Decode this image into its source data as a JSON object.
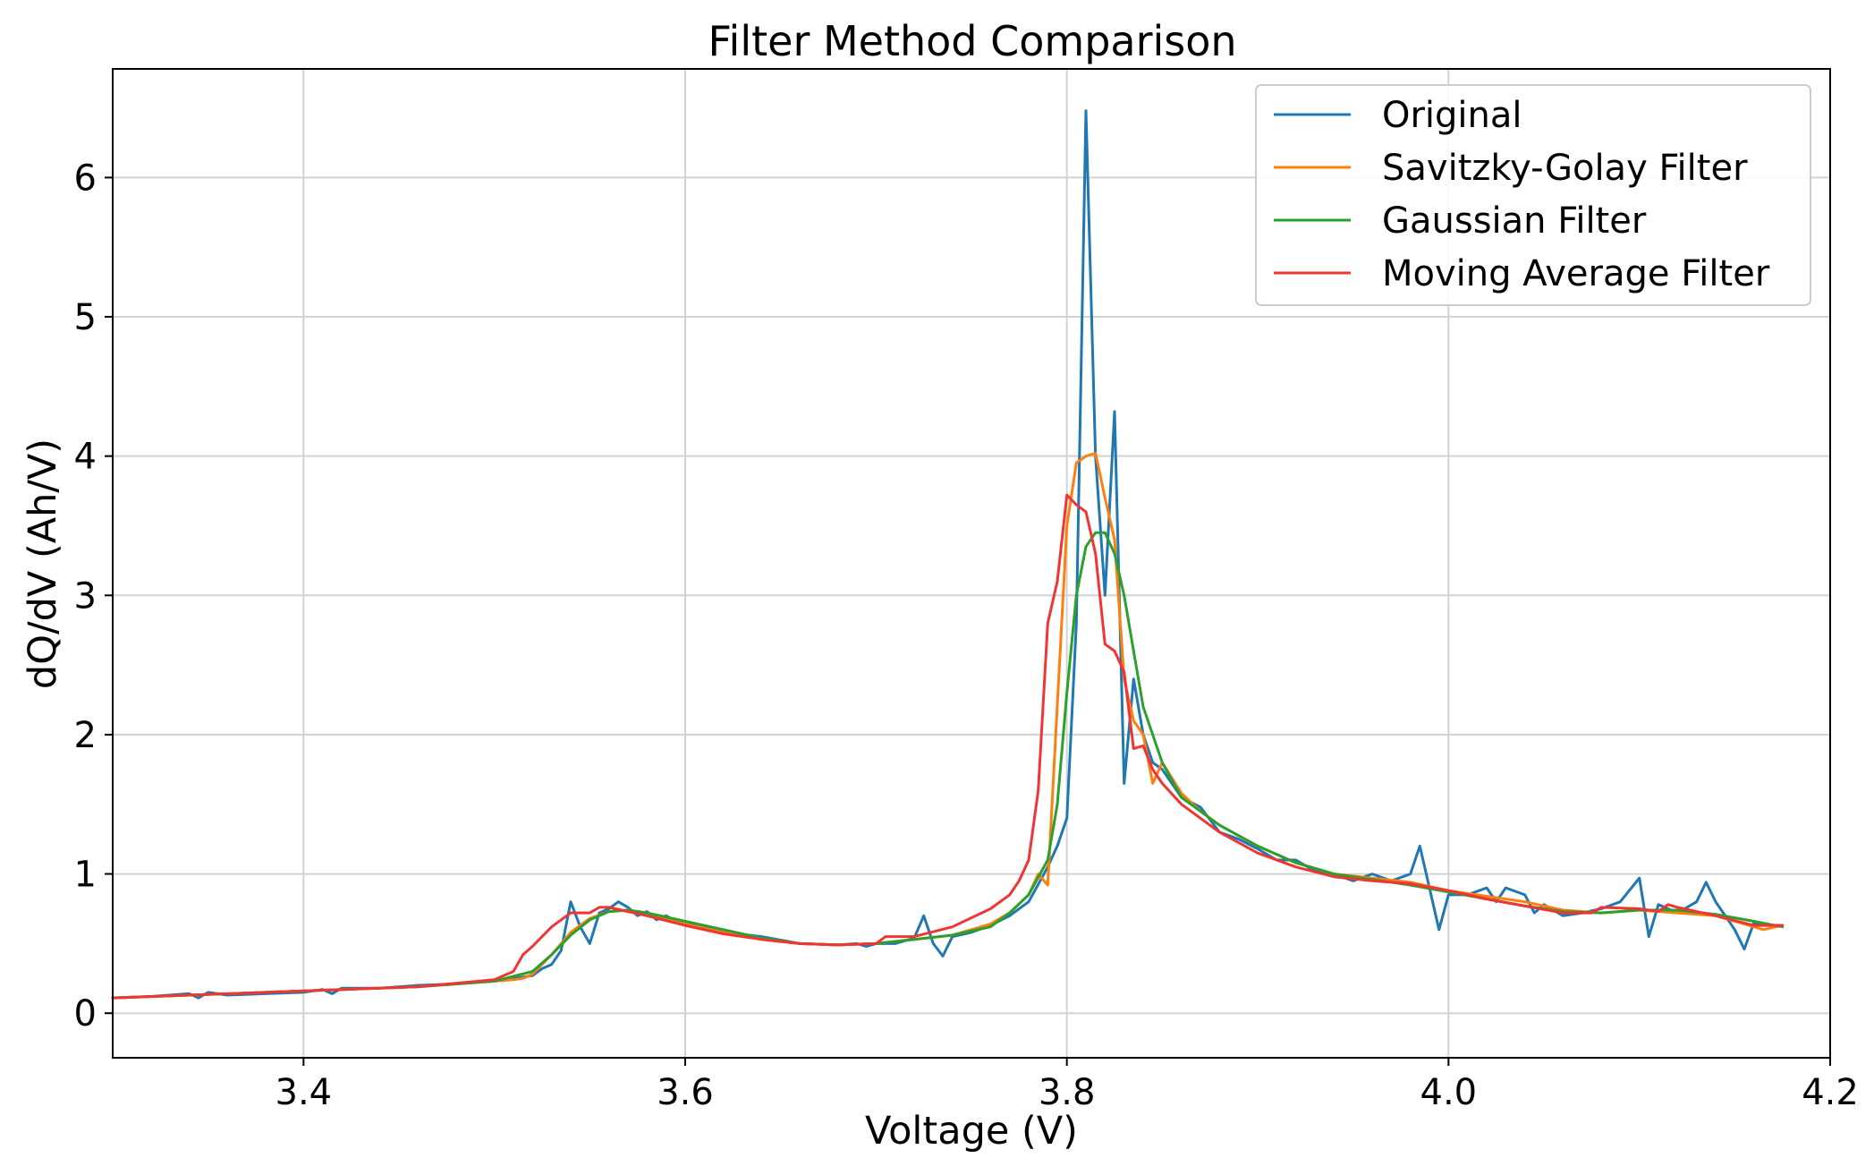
{
  "chart_data": {
    "type": "line",
    "title": "Filter Method Comparison",
    "xlabel": "Voltage (V)",
    "ylabel": "dQ/dV (Ah/V)",
    "xlim": [
      3.3,
      4.2
    ],
    "ylim": [
      -0.32,
      6.78
    ],
    "xticks": [
      3.4,
      3.6,
      3.8,
      4.0,
      4.2
    ],
    "xtick_labels": [
      "3.4",
      "3.6",
      "3.8",
      "4.0",
      "4.2"
    ],
    "yticks": [
      0,
      1,
      2,
      3,
      4,
      5,
      6
    ],
    "ytick_labels": [
      "0",
      "1",
      "2",
      "3",
      "4",
      "5",
      "6"
    ],
    "grid": true,
    "legend_position": "top-right",
    "series": [
      {
        "name": "Original",
        "color": "#1f77b4",
        "x": [
          3.3,
          3.32,
          3.34,
          3.345,
          3.35,
          3.36,
          3.38,
          3.4,
          3.41,
          3.415,
          3.42,
          3.44,
          3.46,
          3.48,
          3.5,
          3.51,
          3.52,
          3.525,
          3.53,
          3.535,
          3.54,
          3.545,
          3.55,
          3.555,
          3.56,
          3.565,
          3.57,
          3.575,
          3.58,
          3.585,
          3.59,
          3.595,
          3.6,
          3.61,
          3.62,
          3.64,
          3.66,
          3.68,
          3.69,
          3.695,
          3.7,
          3.71,
          3.72,
          3.725,
          3.73,
          3.735,
          3.74,
          3.75,
          3.76,
          3.77,
          3.78,
          3.79,
          3.795,
          3.8,
          3.805,
          3.81,
          3.815,
          3.82,
          3.825,
          3.83,
          3.835,
          3.84,
          3.845,
          3.85,
          3.86,
          3.87,
          3.88,
          3.89,
          3.9,
          3.91,
          3.92,
          3.93,
          3.94,
          3.95,
          3.96,
          3.97,
          3.98,
          3.985,
          3.99,
          3.995,
          4.0,
          4.01,
          4.02,
          4.025,
          4.03,
          4.04,
          4.045,
          4.05,
          4.06,
          4.07,
          4.08,
          4.09,
          4.1,
          4.105,
          4.11,
          4.12,
          4.13,
          4.135,
          4.14,
          4.15,
          4.155,
          4.16,
          4.17,
          4.175
        ],
        "values": [
          0.11,
          0.12,
          0.14,
          0.11,
          0.15,
          0.13,
          0.14,
          0.15,
          0.17,
          0.14,
          0.18,
          0.18,
          0.2,
          0.21,
          0.23,
          0.25,
          0.27,
          0.32,
          0.35,
          0.45,
          0.8,
          0.62,
          0.5,
          0.72,
          0.75,
          0.8,
          0.76,
          0.7,
          0.73,
          0.67,
          0.7,
          0.66,
          0.64,
          0.62,
          0.58,
          0.55,
          0.5,
          0.49,
          0.5,
          0.48,
          0.5,
          0.5,
          0.54,
          0.7,
          0.5,
          0.41,
          0.55,
          0.58,
          0.63,
          0.7,
          0.8,
          1.05,
          1.2,
          1.4,
          2.8,
          6.48,
          4.0,
          3.0,
          4.32,
          1.65,
          2.4,
          2.0,
          1.8,
          1.75,
          1.55,
          1.48,
          1.3,
          1.25,
          1.18,
          1.1,
          1.1,
          1.02,
          1.0,
          0.95,
          1.0,
          0.95,
          1.0,
          1.2,
          0.9,
          0.6,
          0.85,
          0.85,
          0.9,
          0.8,
          0.9,
          0.85,
          0.72,
          0.78,
          0.7,
          0.72,
          0.75,
          0.8,
          0.97,
          0.55,
          0.78,
          0.72,
          0.8,
          0.94,
          0.8,
          0.6,
          0.46,
          0.65,
          0.63,
          0.63
        ]
      },
      {
        "name": "Savitzky-Golay Filter",
        "color": "#ff7f0e",
        "x": [
          3.3,
          3.34,
          3.38,
          3.42,
          3.46,
          3.5,
          3.51,
          3.515,
          3.52,
          3.53,
          3.54,
          3.55,
          3.56,
          3.57,
          3.58,
          3.59,
          3.6,
          3.62,
          3.64,
          3.66,
          3.68,
          3.7,
          3.72,
          3.74,
          3.76,
          3.77,
          3.78,
          3.785,
          3.79,
          3.8,
          3.805,
          3.81,
          3.815,
          3.82,
          3.825,
          3.83,
          3.835,
          3.84,
          3.845,
          3.85,
          3.86,
          3.87,
          3.88,
          3.9,
          3.92,
          3.94,
          3.96,
          3.98,
          4.0,
          4.02,
          4.04,
          4.06,
          4.08,
          4.1,
          4.12,
          4.14,
          4.16,
          4.165,
          4.175
        ],
        "values": [
          0.11,
          0.13,
          0.15,
          0.17,
          0.19,
          0.23,
          0.24,
          0.25,
          0.28,
          0.42,
          0.58,
          0.68,
          0.73,
          0.74,
          0.72,
          0.68,
          0.64,
          0.58,
          0.53,
          0.5,
          0.49,
          0.5,
          0.53,
          0.56,
          0.64,
          0.72,
          0.85,
          1.0,
          0.92,
          3.5,
          3.95,
          4.0,
          4.02,
          3.7,
          3.4,
          2.4,
          2.1,
          2.0,
          1.65,
          1.8,
          1.58,
          1.45,
          1.35,
          1.2,
          1.08,
          1.0,
          0.97,
          0.94,
          0.88,
          0.84,
          0.8,
          0.74,
          0.72,
          0.74,
          0.72,
          0.7,
          0.62,
          0.6,
          0.63
        ]
      },
      {
        "name": "Gaussian Filter",
        "color": "#2ca02c",
        "x": [
          3.3,
          3.34,
          3.38,
          3.42,
          3.46,
          3.5,
          3.52,
          3.53,
          3.54,
          3.55,
          3.56,
          3.57,
          3.58,
          3.6,
          3.62,
          3.64,
          3.66,
          3.68,
          3.7,
          3.72,
          3.74,
          3.76,
          3.77,
          3.78,
          3.79,
          3.795,
          3.8,
          3.805,
          3.81,
          3.815,
          3.82,
          3.825,
          3.83,
          3.835,
          3.84,
          3.85,
          3.86,
          3.88,
          3.9,
          3.92,
          3.94,
          3.96,
          3.98,
          4.0,
          4.02,
          4.04,
          4.06,
          4.08,
          4.1,
          4.12,
          4.14,
          4.16,
          4.175
        ],
        "values": [
          0.11,
          0.13,
          0.15,
          0.17,
          0.19,
          0.23,
          0.3,
          0.42,
          0.56,
          0.67,
          0.73,
          0.74,
          0.72,
          0.66,
          0.6,
          0.54,
          0.5,
          0.49,
          0.5,
          0.53,
          0.56,
          0.62,
          0.72,
          0.85,
          1.1,
          1.5,
          2.3,
          3.0,
          3.35,
          3.45,
          3.45,
          3.3,
          3.0,
          2.6,
          2.2,
          1.8,
          1.55,
          1.35,
          1.2,
          1.08,
          1.0,
          0.96,
          0.92,
          0.87,
          0.82,
          0.77,
          0.73,
          0.72,
          0.74,
          0.74,
          0.71,
          0.66,
          0.62
        ]
      },
      {
        "name": "Moving Average Filter",
        "color": "#f03535",
        "x": [
          3.3,
          3.34,
          3.38,
          3.42,
          3.46,
          3.5,
          3.51,
          3.515,
          3.52,
          3.53,
          3.54,
          3.55,
          3.555,
          3.56,
          3.57,
          3.58,
          3.6,
          3.62,
          3.64,
          3.66,
          3.68,
          3.7,
          3.705,
          3.72,
          3.74,
          3.76,
          3.77,
          3.775,
          3.78,
          3.785,
          3.79,
          3.795,
          3.8,
          3.805,
          3.81,
          3.815,
          3.82,
          3.825,
          3.83,
          3.835,
          3.84,
          3.845,
          3.85,
          3.86,
          3.87,
          3.88,
          3.9,
          3.92,
          3.94,
          3.96,
          3.98,
          4.0,
          4.02,
          4.04,
          4.06,
          4.075,
          4.08,
          4.1,
          4.11,
          4.115,
          4.12,
          4.14,
          4.16,
          4.175
        ],
        "values": [
          0.11,
          0.13,
          0.15,
          0.17,
          0.19,
          0.24,
          0.3,
          0.42,
          0.48,
          0.62,
          0.72,
          0.72,
          0.76,
          0.76,
          0.73,
          0.7,
          0.63,
          0.57,
          0.53,
          0.5,
          0.49,
          0.5,
          0.55,
          0.55,
          0.62,
          0.75,
          0.85,
          0.95,
          1.1,
          1.6,
          2.8,
          3.1,
          3.72,
          3.65,
          3.6,
          3.3,
          2.65,
          2.6,
          2.45,
          1.9,
          1.92,
          1.75,
          1.65,
          1.5,
          1.4,
          1.3,
          1.15,
          1.05,
          0.98,
          0.95,
          0.93,
          0.88,
          0.82,
          0.77,
          0.72,
          0.72,
          0.76,
          0.75,
          0.73,
          0.78,
          0.76,
          0.7,
          0.63,
          0.63
        ]
      }
    ]
  }
}
